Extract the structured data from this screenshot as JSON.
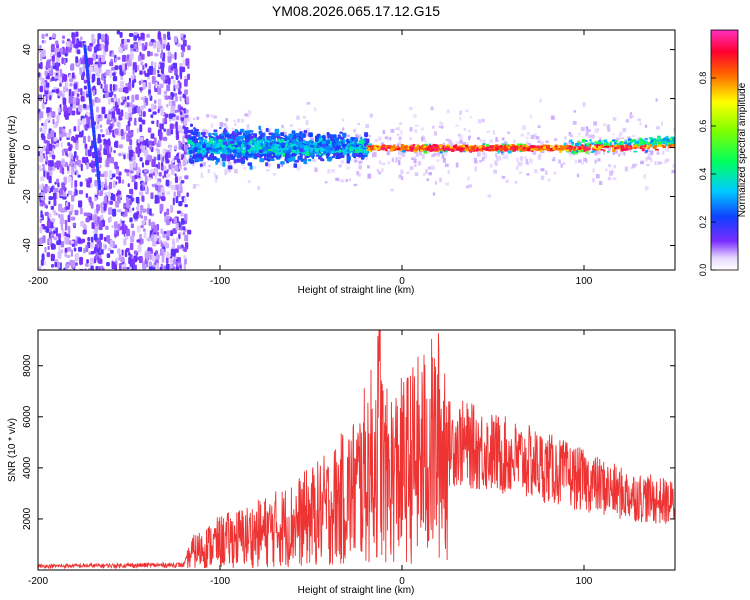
{
  "title": "YM08.2026.065.17.12.G15",
  "chart_data": [
    {
      "type": "heatmap",
      "name": "spectrogram",
      "xlabel": "Height of straight line (km)",
      "ylabel": "Frequency (Hz)",
      "xlim": [
        -200,
        150
      ],
      "ylim": [
        -50,
        48
      ],
      "xticks": [
        -200,
        -100,
        0,
        100
      ],
      "yticks": [
        -40,
        -20,
        0,
        20,
        40
      ],
      "colorbar": {
        "label": "Normalized spectral amplitude",
        "range": [
          0,
          1
        ],
        "ticks": [
          0.0,
          0.2,
          0.4,
          0.6,
          0.8
        ]
      },
      "regions": [
        {
          "x_range": [
            -200,
            -118
          ],
          "freq_range": [
            -50,
            48
          ],
          "amplitude": 0.08,
          "note": "broadband noise"
        },
        {
          "x_range": [
            -118,
            -20
          ],
          "freq_range": [
            -8,
            8
          ],
          "amplitude": 0.4,
          "note": "emerging signal"
        },
        {
          "x_range": [
            -20,
            150
          ],
          "freq_range": [
            -2,
            3
          ],
          "amplitude": 0.95,
          "note": "strong narrow line"
        }
      ],
      "streak": {
        "x": [
          -175,
          -167
        ],
        "freq": [
          42,
          -15
        ]
      }
    },
    {
      "type": "line",
      "name": "snr",
      "xlabel": "Height of straight line (km)",
      "ylabel": "SNR (10 * v/v)",
      "xlim": [
        -200,
        150
      ],
      "ylim": [
        0,
        9400
      ],
      "xticks": [
        -200,
        -100,
        0,
        100
      ],
      "yticks": [
        2000,
        4000,
        6000,
        8000
      ],
      "color": "#ee3333",
      "envelope_x": [
        -200,
        -120,
        -115,
        -100,
        -80,
        -60,
        -40,
        -25,
        -15,
        -12,
        -10,
        0,
        20,
        30,
        50,
        80,
        100,
        120,
        150
      ],
      "envelope_y": [
        150,
        200,
        700,
        1100,
        1400,
        1800,
        2400,
        3200,
        4300,
        5500,
        3600,
        3900,
        4900,
        5000,
        4600,
        4000,
        3500,
        3000,
        2600
      ],
      "peak": {
        "x": -12,
        "y": 9400
      }
    }
  ]
}
